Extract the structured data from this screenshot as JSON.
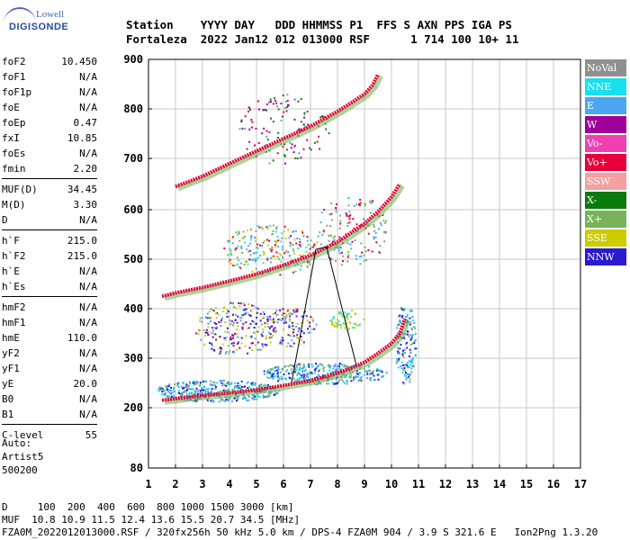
{
  "logo": {
    "line1": "Lowell",
    "line2": "DIGISONDE"
  },
  "header": {
    "line1": "Station    YYYY DAY   DDD HHMMSS P1  FFS S AXN PPS IGA PS",
    "line2": "Fortaleza  2022 Jan12 012 013000 RSF      1 714 100 10+ 11"
  },
  "params": [
    {
      "group": [
        {
          "k": "foF2",
          "v": "10.450"
        },
        {
          "k": "foF1",
          "v": "N/A"
        },
        {
          "k": "foF1p",
          "v": "N/A"
        },
        {
          "k": "foE",
          "v": "N/A"
        },
        {
          "k": "foEp",
          "v": "0.47"
        },
        {
          "k": "fxI",
          "v": "10.85"
        },
        {
          "k": "foEs",
          "v": "N/A"
        },
        {
          "k": "fmin",
          "v": "2.20"
        }
      ]
    },
    {
      "group": [
        {
          "k": "MUF(D)",
          "v": "34.45"
        },
        {
          "k": "M(D)",
          "v": "3.30"
        },
        {
          "k": "D",
          "v": "N/A"
        }
      ]
    },
    {
      "group": [
        {
          "k": "h`F",
          "v": "215.0"
        },
        {
          "k": "h`F2",
          "v": "215.0"
        },
        {
          "k": "h`E",
          "v": "N/A"
        },
        {
          "k": "h`Es",
          "v": "N/A"
        }
      ]
    },
    {
      "group": [
        {
          "k": "hmF2",
          "v": "N/A"
        },
        {
          "k": "hmF1",
          "v": "N/A"
        },
        {
          "k": "hmE",
          "v": "110.0"
        },
        {
          "k": "yF2",
          "v": "N/A"
        },
        {
          "k": "yF1",
          "v": "N/A"
        },
        {
          "k": "yE",
          "v": "20.0"
        },
        {
          "k": "B0",
          "v": "N/A"
        },
        {
          "k": "B1",
          "v": "N/A"
        }
      ]
    },
    {
      "group": [
        {
          "k": "C-level",
          "v": "55"
        }
      ]
    }
  ],
  "auto": {
    "l1": "Auto:",
    "l2": "Artist5",
    "l3": "500200"
  },
  "legend": [
    {
      "label": "NoVal",
      "color": "#909090"
    },
    {
      "label": "NNE",
      "color": "#19e0f0"
    },
    {
      "label": "E",
      "color": "#4aa6f0"
    },
    {
      "label": "W",
      "color": "#a0009a"
    },
    {
      "label": "Vo-",
      "color": "#f040b0"
    },
    {
      "label": "Vo+",
      "color": "#e8003a"
    },
    {
      "label": "SSW",
      "color": "#f4a0a0"
    },
    {
      "label": "X-",
      "color": "#0a7a0a"
    },
    {
      "label": "X+",
      "color": "#7ab25a"
    },
    {
      "label": "SSE",
      "color": "#cccc00"
    },
    {
      "label": "NNW",
      "color": "#2a1ad0"
    }
  ],
  "footer": {
    "line1": "D     100  200  400  600  800 1000 1500 3000 [km]",
    "line2": "MUF  10.8 10.9 11.5 12.4 13.6 15.5 20.7 34.5 [MHz]",
    "line3": "FZA0M_2022012013000.RSF / 320fx256h 50 kHz 5.0 km / DPS-4 FZA0M 904 / 3.9 S 321.6 E   Ion2Png 1.3.20"
  },
  "chart_data": {
    "type": "scatter",
    "x_ticks": [
      "1",
      "2",
      "3",
      "4",
      "5",
      "6",
      "7",
      "8",
      "9",
      "10",
      "11",
      "12",
      "13",
      "14",
      "15",
      "16",
      "17"
    ],
    "y_ticks": [
      "80",
      "200",
      "300",
      "400",
      "500",
      "600",
      "700",
      "800",
      "900"
    ],
    "xlim": [
      1,
      17
    ],
    "ylim": [
      80,
      900
    ],
    "grid": true,
    "traces": [
      {
        "name": "F2 trace 1",
        "color": "#e8003a",
        "x": [
          1.5,
          2.5,
          4,
          5,
          6,
          7,
          7.5,
          8,
          8.5,
          9,
          9.5,
          10,
          10.3,
          10.5
        ],
        "y": [
          215,
          222,
          230,
          236,
          245,
          255,
          262,
          270,
          280,
          292,
          310,
          330,
          350,
          380
        ]
      },
      {
        "name": "F2 trace 2",
        "color": "#e8003a",
        "x": [
          1.5,
          2,
          3,
          4,
          5,
          6,
          7,
          8,
          9,
          9.5,
          10,
          10.3
        ],
        "y": [
          425,
          432,
          443,
          456,
          470,
          488,
          508,
          535,
          572,
          596,
          625,
          650
        ]
      },
      {
        "name": "F2 trace 3",
        "color": "#e8003a",
        "x": [
          2,
          3,
          4,
          5,
          6,
          7,
          8,
          8.5,
          9,
          9.3,
          9.5
        ],
        "y": [
          645,
          665,
          690,
          715,
          740,
          765,
          795,
          812,
          830,
          848,
          870
        ]
      }
    ],
    "muf_curve": {
      "x": [
        6.3,
        7.2,
        7.6,
        8.7
      ],
      "y": [
        250,
        520,
        525,
        285
      ]
    }
  }
}
